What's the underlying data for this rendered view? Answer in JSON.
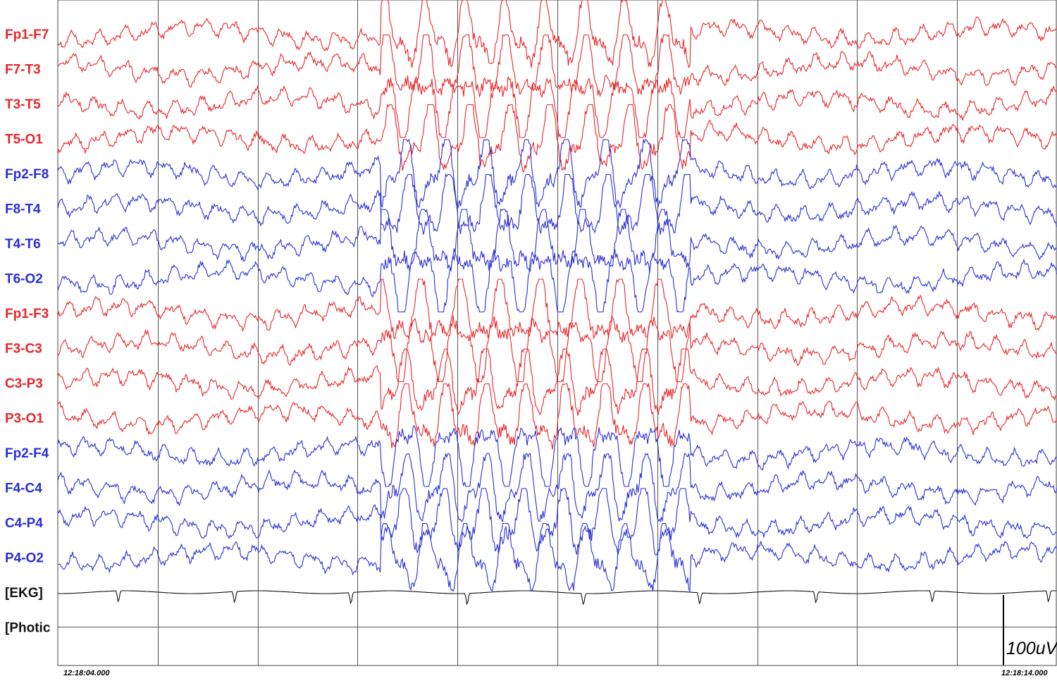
{
  "channels": [
    {
      "label": "Fp1-F7",
      "color": "#e8262a"
    },
    {
      "label": "F7-T3",
      "color": "#e8262a"
    },
    {
      "label": "T3-T5",
      "color": "#e8262a"
    },
    {
      "label": "T5-O1",
      "color": "#e8262a"
    },
    {
      "label": "Fp2-F8",
      "color": "#2a2fd4"
    },
    {
      "label": "F8-T4",
      "color": "#2a2fd4"
    },
    {
      "label": "T4-T6",
      "color": "#2a2fd4"
    },
    {
      "label": "T6-O2",
      "color": "#2a2fd4"
    },
    {
      "label": "Fp1-F3",
      "color": "#e8262a"
    },
    {
      "label": "F3-C3",
      "color": "#e8262a"
    },
    {
      "label": "C3-P3",
      "color": "#e8262a"
    },
    {
      "label": "P3-O1",
      "color": "#e8262a"
    },
    {
      "label": "Fp2-F4",
      "color": "#2a2fd4"
    },
    {
      "label": "F4-C4",
      "color": "#2a2fd4"
    },
    {
      "label": "C4-P4",
      "color": "#2a2fd4"
    },
    {
      "label": "P4-O2",
      "color": "#2a2fd4"
    },
    {
      "label": "[EKG]",
      "color": "#111111"
    },
    {
      "label": "[Photic",
      "color": "#111111"
    }
  ],
  "time_start": "12:18:04.000",
  "time_end": "12:18:14.000",
  "scale_label": "100uV"
}
